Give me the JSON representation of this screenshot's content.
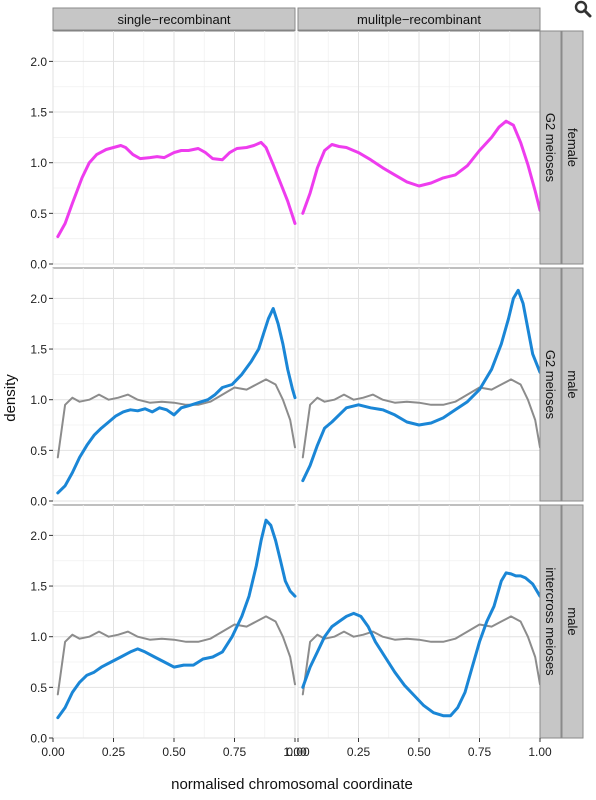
{
  "chart_data": {
    "type": "line",
    "xlabel": "normalised chromosomal coordinate",
    "ylabel": "density",
    "xlim": [
      0,
      1
    ],
    "ylim": [
      0,
      2.3
    ],
    "x_ticks": [
      "0.00",
      "0.25",
      "0.50",
      "0.75",
      "1.00"
    ],
    "y_ticks": [
      "0.0",
      "0.5",
      "1.0",
      "1.5",
      "2.0"
    ],
    "col_facets": [
      "single−recombinant",
      "mulitple−recombinant"
    ],
    "row_facets": [
      {
        "inner": "G2 meioses",
        "outer": "female"
      },
      {
        "inner": "G2 meioses",
        "outer": "male"
      },
      {
        "inner": "intercross meioses",
        "outer": "male"
      }
    ],
    "grid": true,
    "colors": {
      "female": "#ee3cee",
      "male": "#1a86d6",
      "reference": "#8c8c8c"
    },
    "panels": [
      {
        "row": 0,
        "col": 0,
        "series": [
          {
            "color": "female",
            "x": [
              0.02,
              0.05,
              0.08,
              0.12,
              0.15,
              0.18,
              0.22,
              0.25,
              0.28,
              0.3,
              0.33,
              0.36,
              0.4,
              0.43,
              0.46,
              0.5,
              0.53,
              0.56,
              0.6,
              0.63,
              0.66,
              0.7,
              0.73,
              0.76,
              0.8,
              0.83,
              0.86,
              0.88,
              0.91,
              0.94,
              0.97,
              1.0
            ],
            "y": [
              0.27,
              0.4,
              0.6,
              0.85,
              1.0,
              1.08,
              1.13,
              1.15,
              1.17,
              1.15,
              1.08,
              1.04,
              1.05,
              1.06,
              1.05,
              1.1,
              1.12,
              1.12,
              1.14,
              1.1,
              1.04,
              1.03,
              1.1,
              1.14,
              1.15,
              1.17,
              1.2,
              1.15,
              0.98,
              0.8,
              0.62,
              0.4
            ]
          }
        ]
      },
      {
        "row": 0,
        "col": 1,
        "series": [
          {
            "color": "female",
            "x": [
              0.02,
              0.05,
              0.08,
              0.11,
              0.14,
              0.17,
              0.2,
              0.25,
              0.3,
              0.35,
              0.4,
              0.45,
              0.5,
              0.55,
              0.6,
              0.65,
              0.7,
              0.75,
              0.8,
              0.83,
              0.86,
              0.89,
              0.92,
              0.95,
              0.98,
              1.0
            ],
            "y": [
              0.5,
              0.7,
              0.95,
              1.12,
              1.18,
              1.16,
              1.15,
              1.1,
              1.03,
              0.95,
              0.88,
              0.81,
              0.77,
              0.8,
              0.85,
              0.88,
              0.97,
              1.12,
              1.25,
              1.35,
              1.41,
              1.37,
              1.2,
              0.98,
              0.72,
              0.53
            ]
          }
        ]
      },
      {
        "row": 1,
        "col": 0,
        "series": [
          {
            "color": "reference",
            "x": [
              0.02,
              0.05,
              0.08,
              0.11,
              0.15,
              0.19,
              0.23,
              0.27,
              0.31,
              0.35,
              0.4,
              0.45,
              0.5,
              0.55,
              0.6,
              0.65,
              0.7,
              0.75,
              0.8,
              0.84,
              0.88,
              0.92,
              0.95,
              0.98,
              1.0
            ],
            "y": [
              0.43,
              0.95,
              1.02,
              0.98,
              1.0,
              1.05,
              1.0,
              1.02,
              1.05,
              1.0,
              0.97,
              0.98,
              0.97,
              0.95,
              0.95,
              0.98,
              1.05,
              1.12,
              1.1,
              1.15,
              1.2,
              1.15,
              1.0,
              0.8,
              0.53
            ]
          },
          {
            "color": "male",
            "x": [
              0.02,
              0.05,
              0.08,
              0.11,
              0.14,
              0.17,
              0.2,
              0.23,
              0.26,
              0.29,
              0.32,
              0.35,
              0.38,
              0.41,
              0.44,
              0.47,
              0.5,
              0.53,
              0.56,
              0.6,
              0.64,
              0.67,
              0.7,
              0.74,
              0.78,
              0.82,
              0.85,
              0.87,
              0.89,
              0.91,
              0.93,
              0.95,
              0.97,
              0.99,
              1.0
            ],
            "y": [
              0.08,
              0.15,
              0.28,
              0.43,
              0.55,
              0.65,
              0.72,
              0.78,
              0.84,
              0.88,
              0.9,
              0.89,
              0.91,
              0.88,
              0.92,
              0.9,
              0.85,
              0.92,
              0.94,
              0.97,
              1.0,
              1.05,
              1.12,
              1.15,
              1.25,
              1.38,
              1.5,
              1.65,
              1.8,
              1.9,
              1.75,
              1.55,
              1.3,
              1.1,
              1.02
            ]
          }
        ]
      },
      {
        "row": 1,
        "col": 1,
        "series": [
          {
            "color": "reference",
            "x": [
              0.02,
              0.05,
              0.08,
              0.11,
              0.15,
              0.19,
              0.23,
              0.27,
              0.31,
              0.35,
              0.4,
              0.45,
              0.5,
              0.55,
              0.6,
              0.65,
              0.7,
              0.75,
              0.8,
              0.84,
              0.88,
              0.92,
              0.95,
              0.98,
              1.0
            ],
            "y": [
              0.43,
              0.95,
              1.02,
              0.98,
              1.0,
              1.05,
              1.0,
              1.02,
              1.05,
              1.0,
              0.97,
              0.98,
              0.97,
              0.95,
              0.95,
              0.98,
              1.05,
              1.12,
              1.1,
              1.15,
              1.2,
              1.15,
              1.0,
              0.8,
              0.53
            ]
          },
          {
            "color": "male",
            "x": [
              0.02,
              0.05,
              0.08,
              0.11,
              0.14,
              0.17,
              0.2,
              0.25,
              0.3,
              0.35,
              0.4,
              0.45,
              0.5,
              0.55,
              0.6,
              0.65,
              0.7,
              0.75,
              0.8,
              0.84,
              0.87,
              0.89,
              0.91,
              0.93,
              0.95,
              0.97,
              1.0
            ],
            "y": [
              0.2,
              0.35,
              0.55,
              0.72,
              0.78,
              0.85,
              0.92,
              0.95,
              0.92,
              0.9,
              0.85,
              0.78,
              0.75,
              0.77,
              0.82,
              0.9,
              0.98,
              1.1,
              1.3,
              1.55,
              1.8,
              2.0,
              2.08,
              1.95,
              1.7,
              1.45,
              1.27
            ]
          }
        ]
      },
      {
        "row": 2,
        "col": 0,
        "series": [
          {
            "color": "reference",
            "x": [
              0.02,
              0.05,
              0.08,
              0.11,
              0.15,
              0.19,
              0.23,
              0.27,
              0.31,
              0.35,
              0.4,
              0.45,
              0.5,
              0.55,
              0.6,
              0.65,
              0.7,
              0.75,
              0.8,
              0.84,
              0.88,
              0.92,
              0.95,
              0.98,
              1.0
            ],
            "y": [
              0.43,
              0.95,
              1.02,
              0.98,
              1.0,
              1.05,
              1.0,
              1.02,
              1.05,
              1.0,
              0.97,
              0.98,
              0.97,
              0.95,
              0.95,
              0.98,
              1.05,
              1.12,
              1.1,
              1.15,
              1.2,
              1.15,
              1.0,
              0.8,
              0.53
            ]
          },
          {
            "color": "male",
            "x": [
              0.02,
              0.05,
              0.08,
              0.11,
              0.14,
              0.17,
              0.2,
              0.24,
              0.28,
              0.32,
              0.35,
              0.38,
              0.42,
              0.46,
              0.5,
              0.54,
              0.58,
              0.62,
              0.66,
              0.7,
              0.74,
              0.78,
              0.81,
              0.84,
              0.86,
              0.88,
              0.9,
              0.92,
              0.94,
              0.96,
              0.98,
              1.0
            ],
            "y": [
              0.2,
              0.3,
              0.45,
              0.55,
              0.62,
              0.65,
              0.7,
              0.75,
              0.8,
              0.85,
              0.88,
              0.85,
              0.8,
              0.75,
              0.7,
              0.72,
              0.72,
              0.78,
              0.8,
              0.85,
              1.0,
              1.2,
              1.4,
              1.7,
              1.95,
              2.15,
              2.1,
              1.95,
              1.75,
              1.55,
              1.45,
              1.4
            ]
          }
        ]
      },
      {
        "row": 2,
        "col": 1,
        "series": [
          {
            "color": "reference",
            "x": [
              0.02,
              0.05,
              0.08,
              0.11,
              0.15,
              0.19,
              0.23,
              0.27,
              0.31,
              0.35,
              0.4,
              0.45,
              0.5,
              0.55,
              0.6,
              0.65,
              0.7,
              0.75,
              0.8,
              0.84,
              0.88,
              0.92,
              0.95,
              0.98,
              1.0
            ],
            "y": [
              0.43,
              0.95,
              1.02,
              0.98,
              1.0,
              1.05,
              1.0,
              1.02,
              1.05,
              1.0,
              0.97,
              0.98,
              0.97,
              0.95,
              0.95,
              0.98,
              1.05,
              1.12,
              1.1,
              1.15,
              1.2,
              1.15,
              1.0,
              0.8,
              0.53
            ]
          },
          {
            "color": "male",
            "x": [
              0.02,
              0.05,
              0.08,
              0.11,
              0.14,
              0.17,
              0.2,
              0.23,
              0.26,
              0.29,
              0.32,
              0.36,
              0.4,
              0.44,
              0.48,
              0.52,
              0.56,
              0.6,
              0.63,
              0.66,
              0.69,
              0.72,
              0.75,
              0.78,
              0.81,
              0.84,
              0.86,
              0.88,
              0.9,
              0.92,
              0.94,
              0.97,
              1.0
            ],
            "y": [
              0.5,
              0.7,
              0.85,
              1.0,
              1.1,
              1.15,
              1.2,
              1.23,
              1.2,
              1.1,
              0.95,
              0.8,
              0.65,
              0.52,
              0.42,
              0.32,
              0.25,
              0.22,
              0.22,
              0.3,
              0.45,
              0.7,
              0.95,
              1.15,
              1.3,
              1.55,
              1.63,
              1.62,
              1.6,
              1.6,
              1.58,
              1.52,
              1.4
            ]
          }
        ]
      }
    ]
  }
}
